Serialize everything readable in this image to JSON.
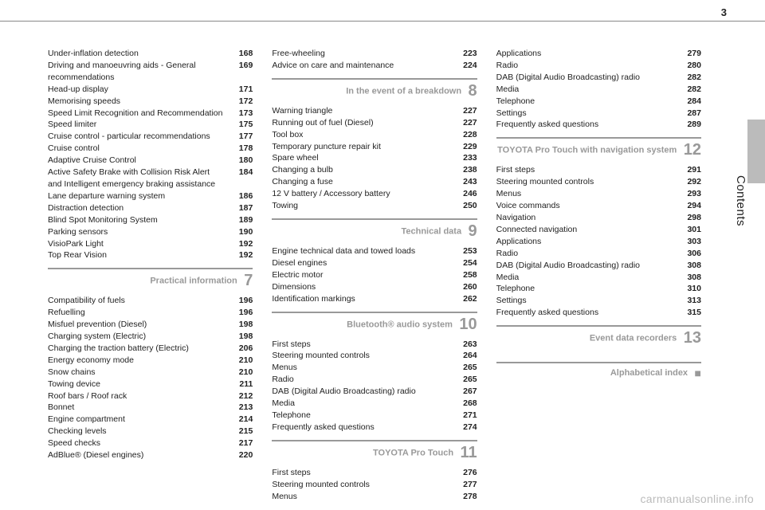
{
  "page_number": "3",
  "side_label": "Contents",
  "watermark": "carmanualsonline.info",
  "col1": {
    "items_a": [
      {
        "label": "Under-inflation detection",
        "page": "168"
      },
      {
        "label": "Driving and manoeuvring aids - General recommendations",
        "page": "169"
      },
      {
        "label": "Head-up display",
        "page": "171"
      },
      {
        "label": "Memorising speeds",
        "page": "172"
      },
      {
        "label": "Speed Limit Recognition and Recommendation",
        "page": "173"
      },
      {
        "label": "Speed limiter",
        "page": "175"
      },
      {
        "label": "Cruise control - particular recommendations",
        "page": "177"
      },
      {
        "label": "Cruise control",
        "page": "178"
      },
      {
        "label": "Adaptive Cruise Control",
        "page": "180"
      },
      {
        "label": "Active Safety Brake with Collision Risk Alert and Intelligent emergency braking assistance",
        "page": "184"
      },
      {
        "label": "Lane departure warning system",
        "page": "186"
      },
      {
        "label": "Distraction detection",
        "page": "187"
      },
      {
        "label": "Blind Spot Monitoring System",
        "page": "189"
      },
      {
        "label": "Parking sensors",
        "page": "190"
      },
      {
        "label": "VisioPark Light",
        "page": "192"
      },
      {
        "label": "Top Rear Vision",
        "page": "192"
      }
    ],
    "section_a": {
      "title": "Practical information",
      "num": "7"
    },
    "items_b": [
      {
        "label": "Compatibility of fuels",
        "page": "196"
      },
      {
        "label": "Refuelling",
        "page": "196"
      },
      {
        "label": "Misfuel prevention (Diesel)",
        "page": "198"
      },
      {
        "label": "Charging system (Electric)",
        "page": "198"
      },
      {
        "label": "Charging the traction battery (Electric)",
        "page": "206"
      },
      {
        "label": "Energy economy mode",
        "page": "210"
      },
      {
        "label": "Snow chains",
        "page": "210"
      },
      {
        "label": "Towing device",
        "page": "211"
      },
      {
        "label": "Roof bars / Roof rack",
        "page": "212"
      },
      {
        "label": "Bonnet",
        "page": "213"
      },
      {
        "label": "Engine compartment",
        "page": "214"
      },
      {
        "label": "Checking levels",
        "page": "215"
      },
      {
        "label": "Speed checks",
        "page": "217"
      },
      {
        "label": "AdBlue® (Diesel engines)",
        "page": "220"
      }
    ]
  },
  "col2": {
    "items_a": [
      {
        "label": "Free-wheeling",
        "page": "223"
      },
      {
        "label": "Advice on care and maintenance",
        "page": "224"
      }
    ],
    "section_a": {
      "title": "In the event of a breakdown",
      "num": "8"
    },
    "items_b": [
      {
        "label": "Warning triangle",
        "page": "227"
      },
      {
        "label": "Running out of fuel (Diesel)",
        "page": "227"
      },
      {
        "label": "Tool box",
        "page": "228"
      },
      {
        "label": "Temporary puncture repair kit",
        "page": "229"
      },
      {
        "label": "Spare wheel",
        "page": "233"
      },
      {
        "label": "Changing a bulb",
        "page": "238"
      },
      {
        "label": "Changing a fuse",
        "page": "243"
      },
      {
        "label": "12 V battery / Accessory battery",
        "page": "246"
      },
      {
        "label": "Towing",
        "page": "250"
      }
    ],
    "section_b": {
      "title": "Technical data",
      "num": "9"
    },
    "items_c": [
      {
        "label": "Engine technical data and towed loads",
        "page": "253"
      },
      {
        "label": "Diesel engines",
        "page": "254"
      },
      {
        "label": "Electric motor",
        "page": "258"
      },
      {
        "label": "Dimensions",
        "page": "260"
      },
      {
        "label": "Identification markings",
        "page": "262"
      }
    ],
    "section_c": {
      "title": "Bluetooth® audio system",
      "num": "10"
    },
    "items_d": [
      {
        "label": "First steps",
        "page": "263"
      },
      {
        "label": "Steering mounted controls",
        "page": "264"
      },
      {
        "label": "Menus",
        "page": "265"
      },
      {
        "label": "Radio",
        "page": "265"
      },
      {
        "label": "DAB (Digital Audio Broadcasting) radio",
        "page": "267"
      },
      {
        "label": "Media",
        "page": "268"
      },
      {
        "label": "Telephone",
        "page": "271"
      },
      {
        "label": "Frequently asked questions",
        "page": "274"
      }
    ],
    "section_d": {
      "title": "TOYOTA Pro Touch",
      "num": "11"
    },
    "items_e": [
      {
        "label": "First steps",
        "page": "276"
      },
      {
        "label": "Steering mounted controls",
        "page": "277"
      },
      {
        "label": "Menus",
        "page": "278"
      }
    ]
  },
  "col3": {
    "items_a": [
      {
        "label": "Applications",
        "page": "279"
      },
      {
        "label": "Radio",
        "page": "280"
      },
      {
        "label": "DAB (Digital Audio Broadcasting) radio",
        "page": "282"
      },
      {
        "label": "Media",
        "page": "282"
      },
      {
        "label": "Telephone",
        "page": "284"
      },
      {
        "label": "Settings",
        "page": "287"
      },
      {
        "label": "Frequently asked questions",
        "page": "289"
      }
    ],
    "section_a": {
      "title": "TOYOTA Pro Touch with navigation system",
      "num": "12"
    },
    "items_b": [
      {
        "label": "First steps",
        "page": "291"
      },
      {
        "label": "Steering mounted controls",
        "page": "292"
      },
      {
        "label": "Menus",
        "page": "293"
      },
      {
        "label": "Voice commands",
        "page": "294"
      },
      {
        "label": "Navigation",
        "page": "298"
      },
      {
        "label": "Connected navigation",
        "page": "301"
      },
      {
        "label": "Applications",
        "page": "303"
      },
      {
        "label": "Radio",
        "page": "306"
      },
      {
        "label": "DAB (Digital Audio Broadcasting) radio",
        "page": "308"
      },
      {
        "label": "Media",
        "page": "308"
      },
      {
        "label": "Telephone",
        "page": "310"
      },
      {
        "label": "Settings",
        "page": "313"
      },
      {
        "label": "Frequently asked questions",
        "page": "315"
      }
    ],
    "section_b": {
      "title": "Event data recorders",
      "num": "13"
    },
    "section_c": {
      "title": "Alphabetical index",
      "marker": "■"
    }
  }
}
